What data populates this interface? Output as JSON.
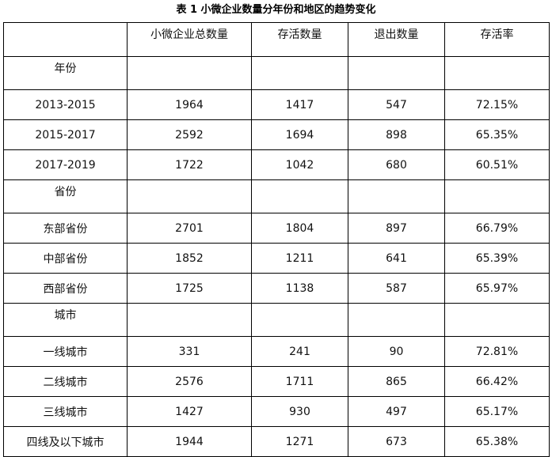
{
  "caption": "表 1 小微企业数量分年份和地区的趋势变化",
  "columns": [
    "",
    "小微企业总数量",
    "存活数量",
    "退出数量",
    "存活率"
  ],
  "sections": [
    {
      "title": "年份",
      "rows": [
        {
          "label": "2013-2015",
          "total": "1964",
          "survive": "1417",
          "exit": "547",
          "rate": "72.15%"
        },
        {
          "label": "2015-2017",
          "total": "2592",
          "survive": "1694",
          "exit": "898",
          "rate": "65.35%"
        },
        {
          "label": "2017-2019",
          "total": "1722",
          "survive": "1042",
          "exit": "680",
          "rate": "60.51%"
        }
      ]
    },
    {
      "title": "省份",
      "rows": [
        {
          "label": "东部省份",
          "total": "2701",
          "survive": "1804",
          "exit": "897",
          "rate": "66.79%"
        },
        {
          "label": "中部省份",
          "total": "1852",
          "survive": "1211",
          "exit": "641",
          "rate": "65.39%"
        },
        {
          "label": "西部省份",
          "total": "1725",
          "survive": "1138",
          "exit": "587",
          "rate": "65.97%"
        }
      ]
    },
    {
      "title": "城市",
      "rows": [
        {
          "label": "一线城市",
          "total": "331",
          "survive": "241",
          "exit": "90",
          "rate": "72.81%"
        },
        {
          "label": "二线城市",
          "total": "2576",
          "survive": "1711",
          "exit": "865",
          "rate": "66.42%"
        },
        {
          "label": "三线城市",
          "total": "1427",
          "survive": "930",
          "exit": "497",
          "rate": "65.17%"
        },
        {
          "label": "四线及以下城市",
          "total": "1944",
          "survive": "1271",
          "exit": "673",
          "rate": "65.38%"
        }
      ]
    }
  ]
}
